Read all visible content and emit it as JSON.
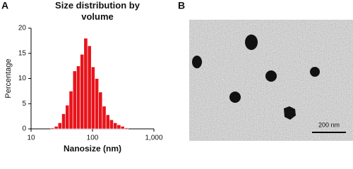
{
  "chart_data": {
    "type": "histogram",
    "title": "Size distribution by volume",
    "xlabel": "Nanosize (nm)",
    "ylabel": "Percentage",
    "bins": [
      20.9,
      24.0,
      27.5,
      31.6,
      36.3,
      41.7,
      47.9,
      55.0,
      63.1,
      72.4,
      83.2,
      95.5,
      109.6,
      125.9,
      144.5,
      166.0,
      190.5,
      218.8,
      251.2,
      288.4,
      331.1,
      380.2
    ],
    "counts": [
      0.2,
      0.5,
      1.2,
      3,
      4.7,
      7.5,
      11.5,
      12.5,
      14.8,
      18,
      16.5,
      12.3,
      10,
      7.3,
      4.5,
      2.8,
      1.8,
      1.2,
      0.8,
      0.5,
      0.2
    ],
    "color": "#e8141b",
    "xscale": "log",
    "xlim": [
      10,
      1000
    ],
    "xticks": [
      10,
      100,
      {
        "value": 1000,
        "label": "1,000"
      }
    ],
    "ylim": [
      0,
      20
    ],
    "yticks": [
      0,
      5,
      10,
      15,
      20
    ]
  },
  "panel_labels": [
    "A",
    "B"
  ],
  "tem_image": {
    "scale_bar_label": "200 nm"
  }
}
